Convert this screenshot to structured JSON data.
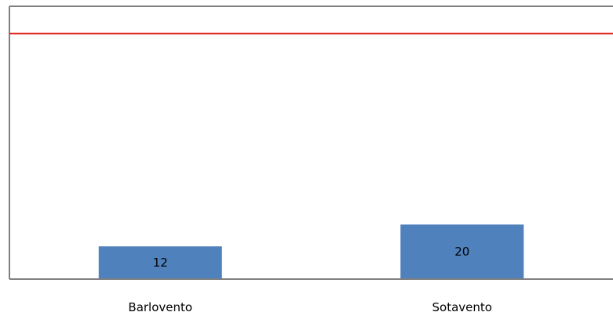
{
  "chart_data": {
    "type": "bar",
    "categories": [
      "Barlovento",
      "Sotavento"
    ],
    "values": [
      12,
      20
    ],
    "data_labels": [
      "12",
      "20"
    ],
    "reference_line": {
      "value": 90,
      "color": "#e0201b"
    },
    "ylim": [
      0,
      100
    ],
    "grid": false,
    "legend": "none",
    "title": "",
    "xlabel": "",
    "ylabel": "",
    "colors": {
      "bar": "#4f81bd",
      "bar_edge": "#3f6fa8",
      "axis": "#808080",
      "label": "#000000"
    }
  }
}
